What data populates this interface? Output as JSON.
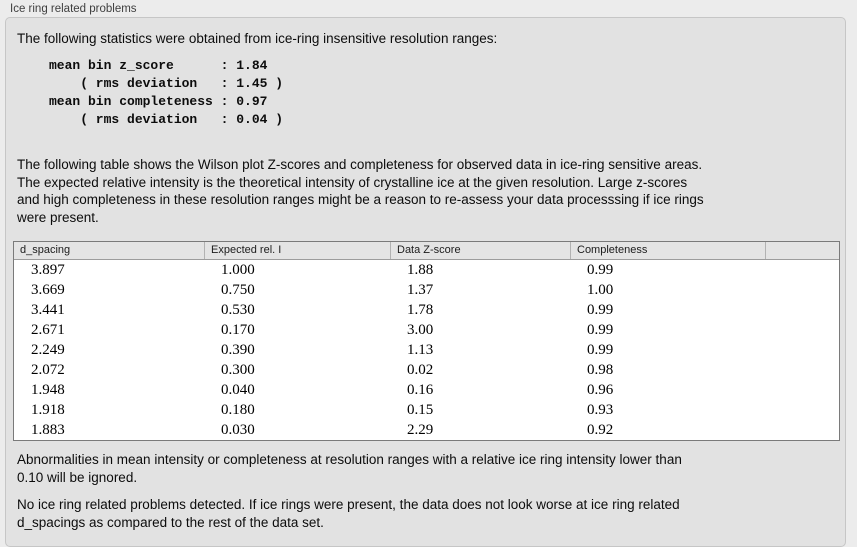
{
  "panel": {
    "title": "Ice ring related problems"
  },
  "intro": {
    "text": "The following statistics were obtained from ice-ring insensitive resolution ranges:"
  },
  "stats": {
    "block": "mean bin z_score      : 1.84\n    ( rms deviation   : 1.45 )\nmean bin completeness : 0.97\n    ( rms deviation   : 0.04 )"
  },
  "description": {
    "text": "The following table shows the Wilson plot Z-scores and completeness for observed data in ice-ring sensitive areas.\nThe expected relative intensity is the theoretical intensity of crystalline ice at the given resolution. Large z-scores\nand high completeness in these resolution ranges might be a reason to re-assess your data processsing if ice rings\nwere present."
  },
  "table": {
    "columns": [
      "d_spacing",
      "Expected rel. I",
      "Data Z-score",
      "Completeness"
    ],
    "rows": [
      [
        "3.897",
        "1.000",
        "1.88",
        "0.99"
      ],
      [
        "3.669",
        "0.750",
        "1.37",
        "1.00"
      ],
      [
        "3.441",
        "0.530",
        "1.78",
        "0.99"
      ],
      [
        "2.671",
        "0.170",
        "3.00",
        "0.99"
      ],
      [
        "2.249",
        "0.390",
        "1.13",
        "0.99"
      ],
      [
        "2.072",
        "0.300",
        "0.02",
        "0.98"
      ],
      [
        "1.948",
        "0.040",
        "0.16",
        "0.96"
      ],
      [
        "1.918",
        "0.180",
        "0.15",
        "0.93"
      ],
      [
        "1.883",
        "0.030",
        "2.29",
        "0.92"
      ]
    ]
  },
  "footnotes": [
    "Abnormalities in mean intensity or completeness at resolution ranges with a relative ice ring intensity lower than\n0.10 will be ignored.",
    "No ice ring related problems detected. If ice rings were present, the data does not look worse at ice ring related\nd_spacings as compared to the rest of the data set."
  ],
  "colors": {
    "page_bg": "#ececec",
    "panel_bg": "#e2e2e2",
    "panel_border": "#c6c6c6",
    "table_bg": "#ffffff",
    "table_border": "#7a7a7a",
    "header_bg": "#e4e4e4",
    "text": "#0c0c0c"
  }
}
